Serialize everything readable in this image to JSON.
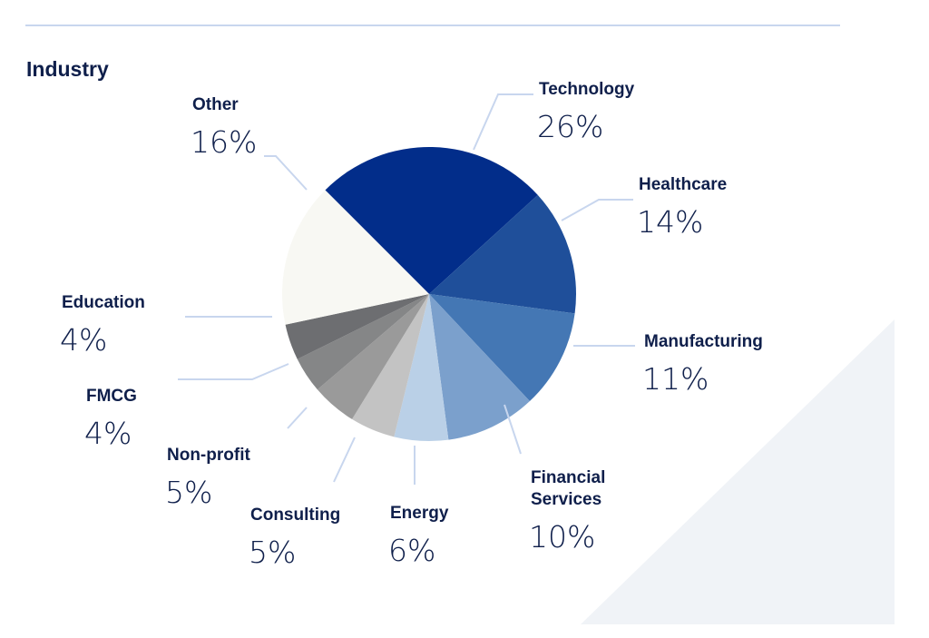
{
  "chart_data": {
    "type": "pie",
    "title": "Industry",
    "slices": [
      {
        "label": [
          "Technology"
        ],
        "value": 26,
        "display": "26%",
        "color": "#022d8a"
      },
      {
        "label": [
          "Healthcare"
        ],
        "value": 14,
        "display": "14%",
        "color": "#1f4f9a"
      },
      {
        "label": [
          "Manufacturing"
        ],
        "value": 11,
        "display": "11%",
        "color": "#4477b4"
      },
      {
        "label": [
          "Financial",
          "Services"
        ],
        "value": 10,
        "display": "10%",
        "color": "#7ba0cc"
      },
      {
        "label": [
          "Energy"
        ],
        "value": 6,
        "display": "6%",
        "color": "#bad0e7"
      },
      {
        "label": [
          "Consulting"
        ],
        "value": 5,
        "display": "5%",
        "color": "#c3c3c3"
      },
      {
        "label": [
          "Non-profit"
        ],
        "value": 5,
        "display": "5%",
        "color": "#9a9a9a"
      },
      {
        "label": [
          "FMCG"
        ],
        "value": 4,
        "display": "4%",
        "color": "#858687"
      },
      {
        "label": [
          "Education"
        ],
        "value": 4,
        "display": "4%",
        "color": "#6d6e71"
      },
      {
        "label": [
          "Other"
        ],
        "value": 16,
        "display": "16%",
        "color": "#f8f8f3"
      }
    ]
  },
  "colors": {
    "title": "#0f1f4b",
    "leader": "#c8d6ee",
    "rule": "#c8d6ee",
    "background_triangle": "#f0f3f7"
  }
}
